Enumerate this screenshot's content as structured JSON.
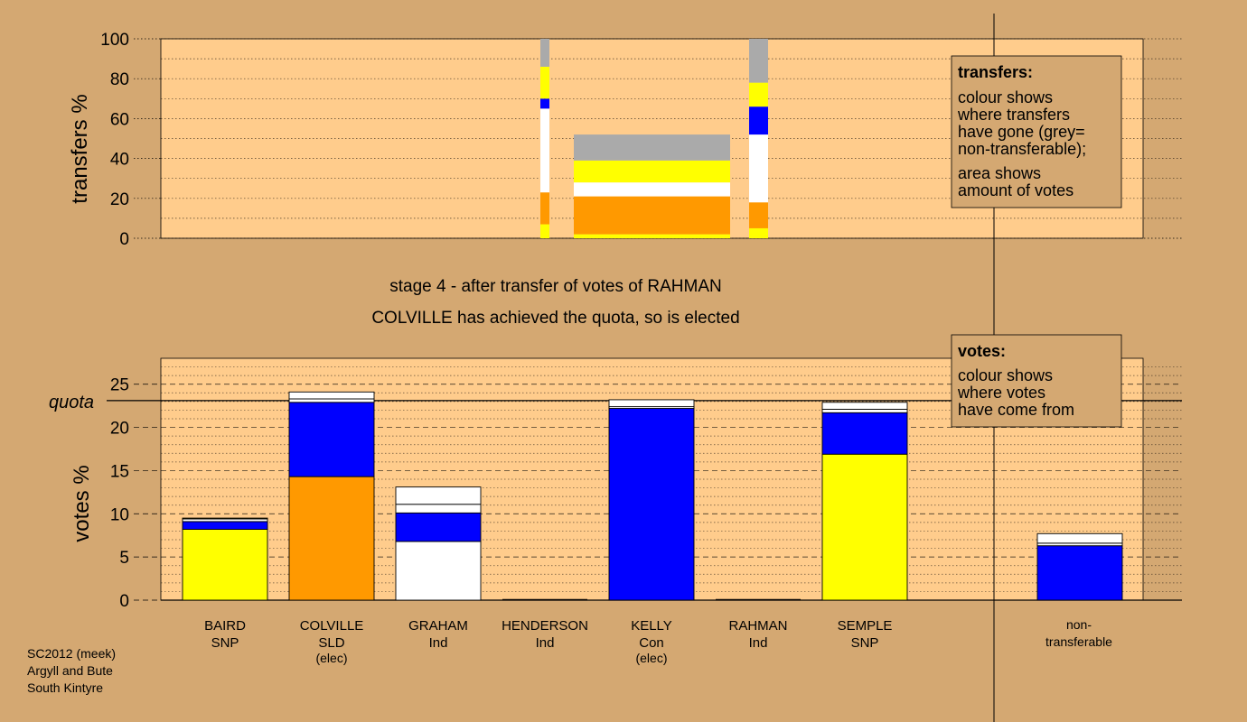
{
  "stage": {
    "line1": "stage 4 - after transfer of votes of RAHMAN",
    "line2": "COLVILLE has achieved the quota, so is elected"
  },
  "colors": {
    "background": "#d4a872",
    "panel": "#ffcc8c",
    "SNP": "#ffff00",
    "SLD": "#ff9900",
    "Ind": "#ffffff",
    "Con": "#0000ff",
    "nontransferable": "#aaaaaa"
  },
  "legend_transfers": {
    "title": "transfers:",
    "lines": [
      "colour shows",
      "where transfers",
      "have gone (grey=",
      "non-transferable);",
      "area shows",
      "amount of votes"
    ]
  },
  "legend_votes": {
    "title": "votes:",
    "lines": [
      "colour shows",
      "where votes",
      "have come from"
    ]
  },
  "footer": {
    "line1": "SC2012 (meek)",
    "line2": "Argyll and Bute",
    "line3": "South Kintyre"
  },
  "chart_data": [
    {
      "type": "bar",
      "title": "",
      "ylabel": "transfers %",
      "ylim": [
        0,
        100
      ],
      "yticks": [
        0,
        20,
        40,
        60,
        80,
        100
      ],
      "bars": [
        {
          "name": "transfer-strip-1",
          "segments": [
            {
              "from": 0,
              "to": 7,
              "color": "#ffff00"
            },
            {
              "from": 7,
              "to": 23,
              "color": "#ff9900"
            },
            {
              "from": 23,
              "to": 65,
              "color": "#ffffff"
            },
            {
              "from": 65,
              "to": 70,
              "color": "#0000ff"
            },
            {
              "from": 70,
              "to": 86,
              "color": "#ffff00"
            },
            {
              "from": 86,
              "to": 100,
              "color": "#aaaaaa"
            }
          ]
        },
        {
          "name": "transfer-block-rahman",
          "segments": [
            {
              "from": 0,
              "to": 2,
              "color": "#ffff00"
            },
            {
              "from": 2,
              "to": 21,
              "color": "#ff9900"
            },
            {
              "from": 21,
              "to": 28,
              "color": "#ffffff"
            },
            {
              "from": 28,
              "to": 39,
              "color": "#ffff00"
            },
            {
              "from": 39,
              "to": 52,
              "color": "#aaaaaa"
            }
          ]
        },
        {
          "name": "transfer-strip-2",
          "segments": [
            {
              "from": 0,
              "to": 5,
              "color": "#ffff00"
            },
            {
              "from": 5,
              "to": 18,
              "color": "#ff9900"
            },
            {
              "from": 18,
              "to": 52,
              "color": "#ffffff"
            },
            {
              "from": 52,
              "to": 66,
              "color": "#0000ff"
            },
            {
              "from": 66,
              "to": 78,
              "color": "#ffff00"
            },
            {
              "from": 78,
              "to": 100,
              "color": "#aaaaaa"
            }
          ]
        }
      ]
    },
    {
      "type": "bar",
      "title": "",
      "ylabel": "votes %",
      "ylim": [
        0,
        28
      ],
      "yticks": [
        0,
        5,
        10,
        15,
        20,
        25
      ],
      "quota": 23.1,
      "quota_label": "quota",
      "candidates": [
        {
          "name": "BAIRD",
          "party": "SNP",
          "status": "",
          "segments": [
            {
              "from": 0,
              "to": 8.2,
              "color": "#ffff00"
            },
            {
              "from": 8.2,
              "to": 9.1,
              "color": "#0000ff"
            },
            {
              "from": 9.1,
              "to": 9.4,
              "color": "#ffffff"
            },
            {
              "from": 9.4,
              "to": 9.5,
              "color": "#ffff00"
            }
          ]
        },
        {
          "name": "COLVILLE",
          "party": "SLD",
          "status": "(elec)",
          "segments": [
            {
              "from": 0,
              "to": 14.3,
              "color": "#ff9900"
            },
            {
              "from": 14.3,
              "to": 22.9,
              "color": "#0000ff"
            },
            {
              "from": 22.9,
              "to": 23.3,
              "color": "#ffffff"
            },
            {
              "from": 23.3,
              "to": 24.1,
              "color": "#ffffff"
            }
          ]
        },
        {
          "name": "GRAHAM",
          "party": "Ind",
          "status": "",
          "segments": [
            {
              "from": 0,
              "to": 6.8,
              "color": "#ffffff"
            },
            {
              "from": 6.8,
              "to": 10.1,
              "color": "#0000ff"
            },
            {
              "from": 10.1,
              "to": 11.1,
              "color": "#ffffff"
            },
            {
              "from": 11.1,
              "to": 13.1,
              "color": "#ffffff"
            }
          ]
        },
        {
          "name": "HENDERSON",
          "party": "Ind",
          "status": "",
          "segments": []
        },
        {
          "name": "KELLY",
          "party": "Con",
          "status": "(elec)",
          "segments": [
            {
              "from": 0,
              "to": 22.2,
              "color": "#0000ff"
            },
            {
              "from": 22.2,
              "to": 22.4,
              "color": "#ffffff"
            },
            {
              "from": 22.4,
              "to": 23.2,
              "color": "#ffffff"
            }
          ]
        },
        {
          "name": "RAHMAN",
          "party": "Ind",
          "status": "",
          "segments": []
        },
        {
          "name": "SEMPLE",
          "party": "SNP",
          "status": "",
          "segments": [
            {
              "from": 0,
              "to": 16.9,
              "color": "#ffff00"
            },
            {
              "from": 16.9,
              "to": 21.7,
              "color": "#0000ff"
            },
            {
              "from": 21.7,
              "to": 22.1,
              "color": "#ffffff"
            },
            {
              "from": 22.1,
              "to": 22.9,
              "color": "#ffffff"
            }
          ]
        }
      ],
      "nontransferable": {
        "label_line1": "non-",
        "label_line2": "transferable",
        "segments": [
          {
            "from": 0,
            "to": 6.3,
            "color": "#0000ff"
          },
          {
            "from": 6.3,
            "to": 6.6,
            "color": "#ffffff"
          },
          {
            "from": 6.6,
            "to": 7.7,
            "color": "#ffffff"
          }
        ]
      }
    }
  ]
}
